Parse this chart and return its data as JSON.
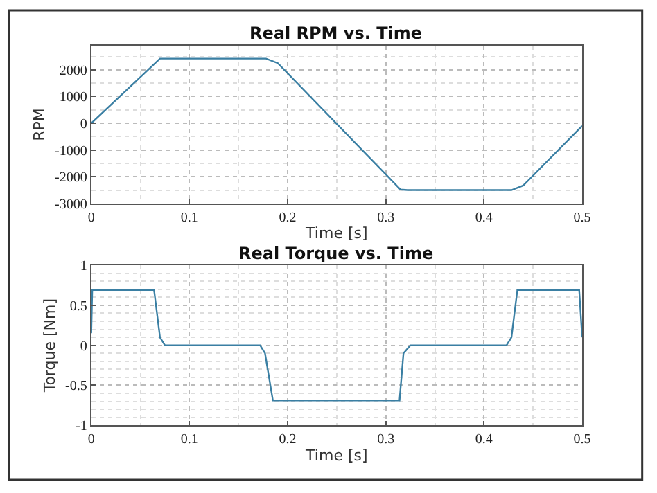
{
  "chart_data": [
    {
      "type": "line",
      "title": "Real RPM vs. Time",
      "xlabel": "Time [s]",
      "ylabel": "RPM",
      "x": [
        0,
        0.07,
        0.178,
        0.19,
        0.315,
        0.322,
        0.428,
        0.44,
        0.5
      ],
      "series": [
        {
          "color": "#3a7fa3",
          "values": [
            0,
            2420,
            2420,
            2250,
            -2480,
            -2500,
            -2500,
            -2330,
            -100
          ]
        }
      ],
      "xlim": [
        0,
        0.5
      ],
      "xticks": [
        0,
        0.1,
        0.2,
        0.3,
        0.4,
        0.5
      ],
      "ylim": [
        -3000,
        2900
      ],
      "yticks": [
        -3000,
        -2000,
        -1000,
        0,
        1000,
        2000
      ],
      "grid": true
    },
    {
      "type": "line",
      "title": "Real Torque vs. Time",
      "xlabel": "Time [s]",
      "ylabel": "Torque [Nm]",
      "x": [
        0,
        0.001,
        0.064,
        0.07,
        0.075,
        0.172,
        0.177,
        0.185,
        0.314,
        0.318,
        0.325,
        0.423,
        0.428,
        0.434,
        0.497,
        0.5
      ],
      "series": [
        {
          "color": "#3a7fa3",
          "values": [
            0.15,
            0.69,
            0.69,
            0.1,
            0,
            0,
            -0.1,
            -0.69,
            -0.69,
            -0.1,
            0,
            0,
            0.1,
            0.69,
            0.69,
            0.1
          ]
        }
      ],
      "xlim": [
        0,
        0.5
      ],
      "xticks": [
        0,
        0.1,
        0.2,
        0.3,
        0.4,
        0.5
      ],
      "ylim": [
        -1,
        1
      ],
      "yticks": [
        -1,
        -0.5,
        0,
        0.5,
        1
      ],
      "grid": true
    }
  ]
}
